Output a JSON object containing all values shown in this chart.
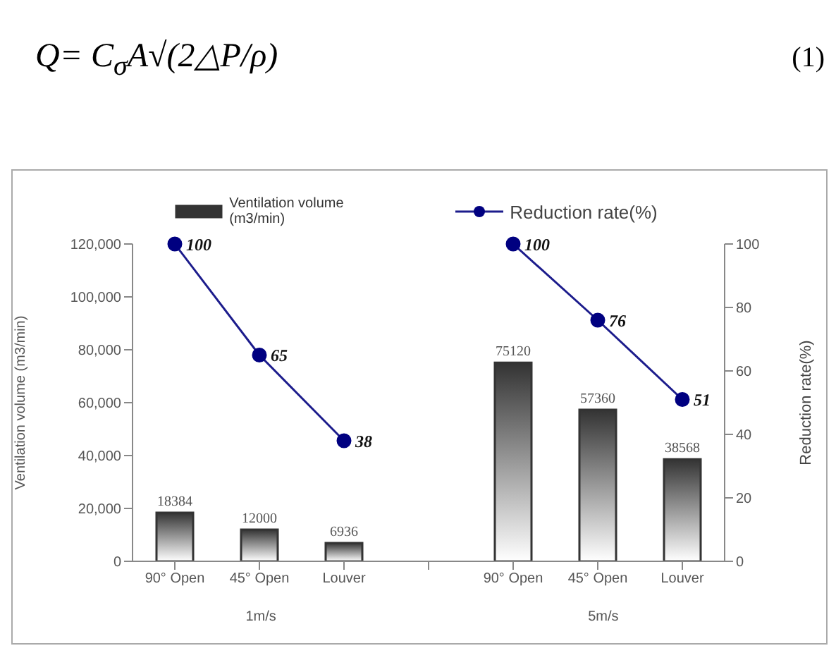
{
  "chart_data": {
    "type": "bar",
    "annotations": [
      "Q= C$_{σ}$A√(2△P/ρ)",
      "(1)",
      "1m/s",
      "5m/s"
    ],
    "ylabel": "Ventilation volume (m3/min)",
    "y2label": "Reduction rate(%)",
    "categories": [
      "90° Open",
      "45° Open",
      "Louver",
      null,
      "90° Open",
      "45° Open",
      "Louver"
    ],
    "series": [
      {
        "name": "Ventilation volume (m3/min)",
        "color": "#333333",
        "values": [
          18384,
          12000,
          6936,
          null,
          75120,
          57360,
          38568
        ]
      },
      {
        "name": "Reduction rate(%)",
        "type": "line",
        "axis": "y2",
        "color": "#1c1c8c",
        "values": [
          100,
          65,
          38,
          null,
          100,
          76,
          51
        ]
      }
    ],
    "ylim": [
      0,
      120000
    ],
    "yticks": [
      {
        "value": 0,
        "label": "0"
      },
      {
        "value": 20000,
        "label": "20,000"
      },
      {
        "value": 40000,
        "label": "40,000"
      },
      {
        "value": 60000,
        "label": "60,000"
      },
      {
        "value": 80000,
        "label": "80,000"
      },
      {
        "value": 100000,
        "label": "100,000"
      },
      {
        "value": 120000,
        "label": "120,000"
      }
    ],
    "y2lim": [
      0,
      100
    ],
    "y2ticks": [
      0,
      20,
      40,
      60,
      80,
      100
    ],
    "data_labels": true,
    "legend": "top",
    "marker": "circle",
    "line_style": "solid"
  }
}
